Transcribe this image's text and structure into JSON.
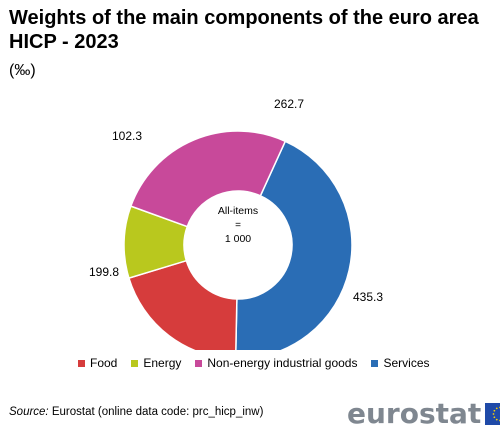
{
  "title": "Weights of the main components of the euro area HICP - 2023",
  "unit": "(‰)",
  "center_label": [
    "All-items",
    "=",
    "1 000"
  ],
  "chart_data": {
    "type": "pie",
    "donut": true,
    "categories": [
      "Services",
      "Food",
      "Energy",
      "Non-energy industrial goods"
    ],
    "values": [
      435.3,
      199.8,
      102.3,
      262.7
    ],
    "value_labels": [
      "435.3",
      "199.8",
      "102.3",
      "262.7"
    ],
    "colors": [
      "#2a6db5",
      "#d63c3c",
      "#b9c81e",
      "#c8499a"
    ],
    "legend_order": [
      "Food",
      "Energy",
      "Non-energy industrial goods",
      "Services"
    ],
    "legend_colors": [
      "#d63c3c",
      "#b9c81e",
      "#c8499a",
      "#2a6db5"
    ],
    "legend_position": "bottom"
  },
  "source": {
    "label": "Source:",
    "text": "Eurostat (online data code: prc_hicp_inw)"
  },
  "logo": {
    "text": "eurostat",
    "flag_color": "#1f4aa8",
    "star_color": "#f2cc0c"
  }
}
